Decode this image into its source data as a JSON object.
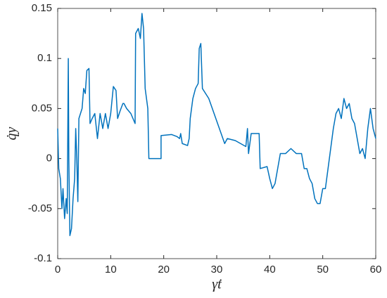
{
  "chart_data": {
    "type": "line",
    "x_label": "γ̇t",
    "y_label": "q̇y",
    "x": [
      0,
      0.2,
      0.5,
      0.8,
      1.0,
      1.3,
      1.6,
      1.8,
      2.0,
      2.1,
      2.3,
      2.6,
      2.9,
      3.2,
      3.4,
      3.6,
      3.8,
      4.0,
      4.3,
      4.6,
      4.9,
      5.2,
      5.5,
      5.9,
      6.1,
      6.5,
      7.0,
      7.5,
      8.0,
      8.5,
      9.0,
      9.5,
      10.0,
      10.5,
      11.0,
      11.3,
      11.8,
      12.3,
      12.5,
      13.0,
      13.8,
      14.2,
      14.6,
      14.7,
      15.2,
      15.6,
      15.9,
      16.2,
      16.5,
      17.0,
      17.2,
      19.5,
      19.5,
      21.5,
      22.5,
      23.0,
      23.2,
      23.5,
      24.5,
      24.8,
      25.0,
      25.5,
      26.0,
      26.5,
      26.7,
      27.0,
      27.3,
      28.5,
      29.5,
      30.5,
      31.5,
      32.0,
      33.5,
      34.5,
      35.5,
      35.8,
      36.0,
      36.5,
      38.0,
      38.2,
      39.5,
      40.0,
      40.5,
      41.0,
      41.5,
      42.0,
      43.0,
      44.0,
      45.0,
      46.0,
      46.5,
      47.0,
      47.5,
      48.0,
      48.5,
      49.0,
      49.5,
      50.0,
      50.5,
      51.0,
      51.5,
      52.0,
      52.5,
      53.0,
      53.5,
      54.0,
      54.5,
      55.0,
      55.5,
      56.0,
      56.5,
      57.0,
      57.5,
      58.0,
      58.5,
      59.0,
      59.5,
      60.0
    ],
    "series": [
      {
        "color": "#0072bd",
        "values": [
          0.03,
          -0.01,
          -0.02,
          -0.05,
          -0.03,
          -0.06,
          -0.04,
          -0.055,
          0.1,
          0.0,
          -0.077,
          -0.07,
          -0.04,
          -0.02,
          0.03,
          0.0,
          -0.043,
          0.04,
          0.045,
          0.05,
          0.07,
          0.065,
          0.088,
          0.09,
          0.035,
          0.04,
          0.045,
          0.02,
          0.045,
          0.03,
          0.045,
          0.03,
          0.045,
          0.072,
          0.068,
          0.04,
          0.048,
          0.055,
          0.055,
          0.05,
          0.045,
          0.04,
          0.035,
          0.125,
          0.13,
          0.12,
          0.145,
          0.13,
          0.07,
          0.05,
          0.0,
          0.0,
          0.023,
          0.024,
          0.022,
          0.02,
          0.025,
          0.015,
          0.013,
          0.02,
          0.04,
          0.06,
          0.07,
          0.075,
          0.11,
          0.115,
          0.07,
          0.06,
          0.045,
          0.03,
          0.015,
          0.02,
          0.018,
          0.015,
          0.012,
          0.03,
          0.005,
          0.025,
          0.025,
          -0.01,
          -0.008,
          -0.02,
          -0.03,
          -0.025,
          -0.01,
          0.005,
          0.005,
          0.01,
          0.005,
          0.005,
          -0.01,
          -0.01,
          -0.02,
          -0.025,
          -0.04,
          -0.045,
          -0.045,
          -0.03,
          -0.03,
          -0.01,
          0.01,
          0.03,
          0.045,
          0.05,
          0.04,
          0.06,
          0.05,
          0.055,
          0.04,
          0.035,
          0.02,
          0.005,
          0.01,
          0.0,
          0.03,
          0.05,
          0.03,
          0.02
        ]
      }
    ],
    "xlim": [
      0,
      60
    ],
    "xticks": [
      0,
      10,
      20,
      30,
      40,
      50,
      60
    ],
    "ylim": [
      -0.1,
      0.15
    ],
    "yticks": [
      -0.1,
      -0.05,
      0,
      0.05,
      0.1,
      0.15
    ]
  }
}
